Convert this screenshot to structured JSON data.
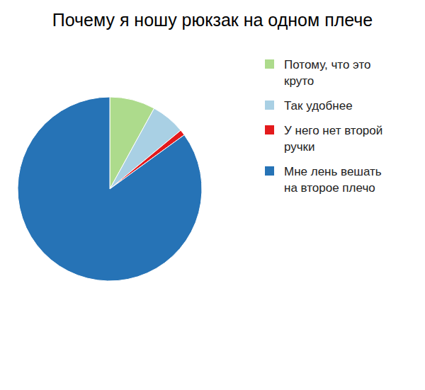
{
  "chart_data": {
    "type": "pie",
    "title": "Почему я ношу рюкзак на одном плече",
    "categories": [
      "Потому, что это круто",
      "Так удобнее",
      "У него нет второй ручки",
      "Мне лень вешать на второе плечо"
    ],
    "values": [
      8,
      6,
      1,
      85
    ],
    "colors": [
      "#addb8c",
      "#a9d0e4",
      "#e31a1c",
      "#2673b6"
    ],
    "legend": "right"
  }
}
